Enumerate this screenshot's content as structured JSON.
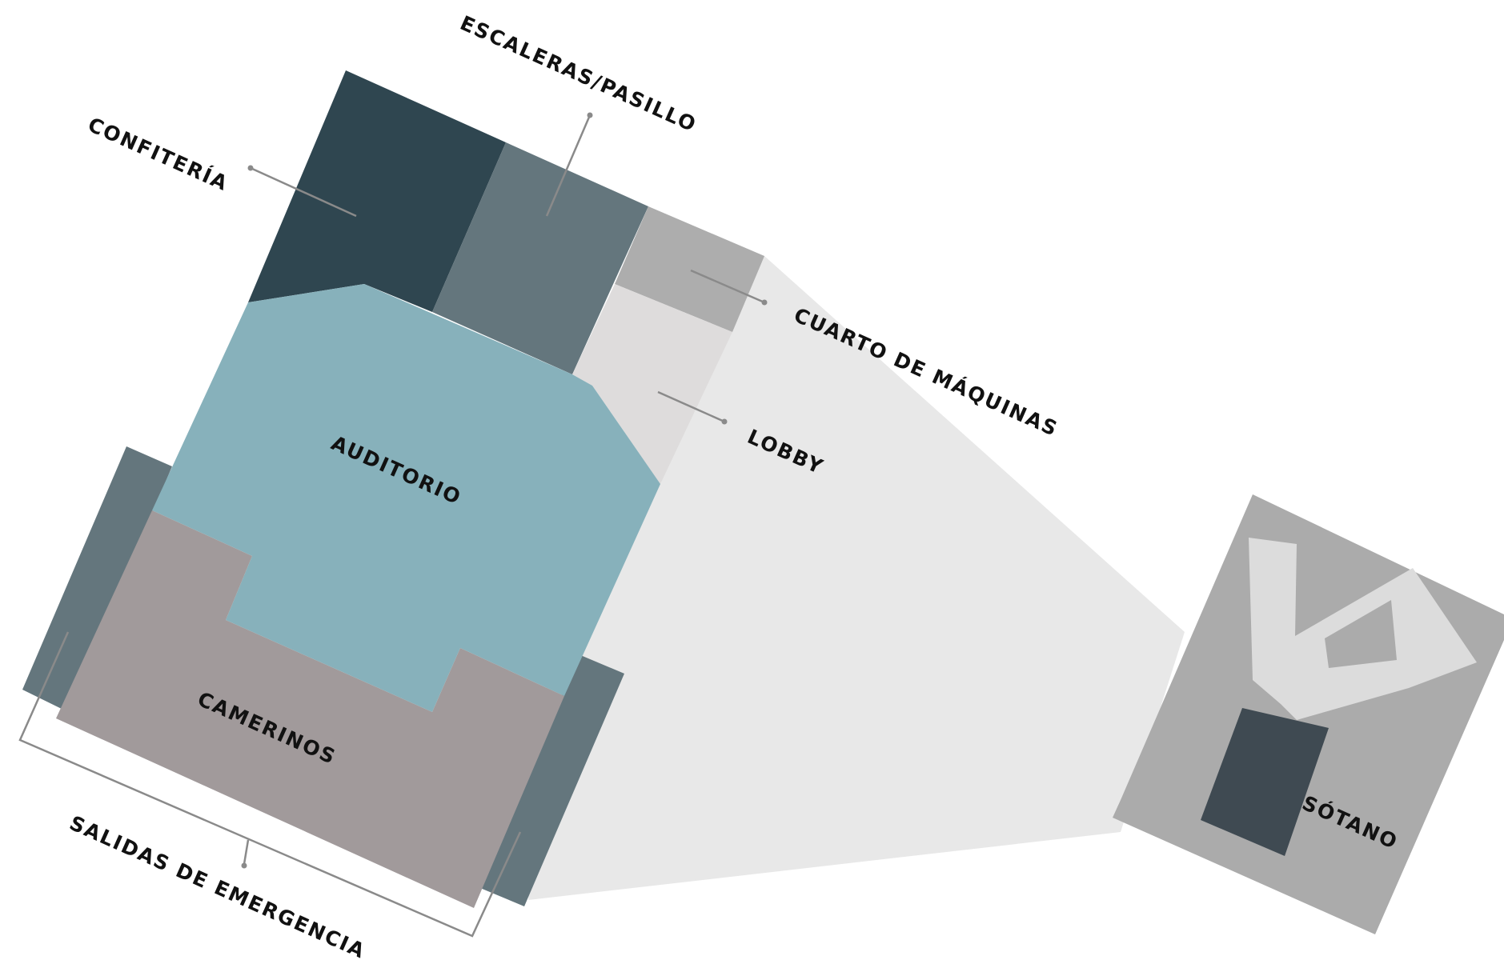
{
  "labels": {
    "escaleras": "ESCALERAS/PASILLO",
    "confiteria": "CONFITERÍA",
    "cuarto": "CUARTO DE MÁQUINAS",
    "lobby": "LOBBY",
    "auditorio": "AUDITORIO",
    "camerinos": "CAMERINOS",
    "salidas": "SALIDAS DE EMERGENCIA",
    "sotano": "SÓTANO"
  },
  "colors": {
    "confiteria": "#2f4650",
    "escaleras": "#64767d",
    "cuarto": "#adadad",
    "lobby": "#dedcdc",
    "auditorio": "#87b1bb",
    "camerinos": "#a19a9b",
    "salidas": "#64767d",
    "projection": "#e8e8e8",
    "sotano_block": "#ababab",
    "sotano_room": "#3f4a52",
    "sotano_shape": "#dcdcdc",
    "leader": "#8a8a8a"
  }
}
